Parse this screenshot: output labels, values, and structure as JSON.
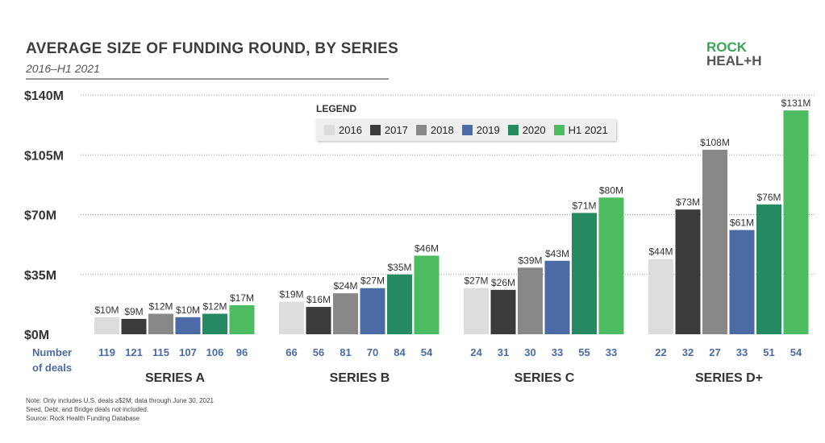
{
  "chart_data": {
    "type": "bar",
    "title": "AVERAGE SIZE OF FUNDING ROUND, BY SERIES",
    "subtitle": "2016–H1 2021",
    "ylim": [
      0,
      140
    ],
    "yticks": [
      0,
      35,
      70,
      105,
      140
    ],
    "ytick_labels": [
      "$0M",
      "$35M",
      "$70M",
      "$105M",
      "$140M"
    ],
    "categories": [
      "SERIES A",
      "SERIES B",
      "SERIES C",
      "SERIES D+"
    ],
    "deals_label": [
      "Number",
      "of deals"
    ],
    "legend_title": "LEGEND",
    "series": [
      {
        "name": "2016",
        "color": "#dcdcdc",
        "values": [
          10,
          19,
          27,
          44
        ],
        "labels": [
          "$10M",
          "$19M",
          "$27M",
          "$44M"
        ],
        "deals": [
          119,
          66,
          24,
          22
        ]
      },
      {
        "name": "2017",
        "color": "#3b3b3b",
        "values": [
          9,
          16,
          26,
          73
        ],
        "labels": [
          "$9M",
          "$16M",
          "$26M",
          "$73M"
        ],
        "deals": [
          121,
          56,
          31,
          32
        ]
      },
      {
        "name": "2018",
        "color": "#888888",
        "values": [
          12,
          24,
          39,
          108
        ],
        "labels": [
          "$12M",
          "$24M",
          "$39M",
          "$108M"
        ],
        "deals": [
          115,
          81,
          30,
          27
        ]
      },
      {
        "name": "2019",
        "color": "#4b6aa6",
        "values": [
          10,
          27,
          43,
          61
        ],
        "labels": [
          "$10M",
          "$27M",
          "$43M",
          "$61M"
        ],
        "deals": [
          107,
          70,
          33,
          33
        ]
      },
      {
        "name": "2020",
        "color": "#258a62",
        "values": [
          12,
          35,
          71,
          76
        ],
        "labels": [
          "$12M",
          "$35M",
          "$71M",
          "$76M"
        ],
        "deals": [
          106,
          84,
          55,
          51
        ]
      },
      {
        "name": "H1 2021",
        "color": "#4dbb5f",
        "values": [
          17,
          46,
          80,
          131
        ],
        "labels": [
          "$17M",
          "$46M",
          "$80M",
          "$131M"
        ],
        "deals": [
          96,
          54,
          33,
          54
        ]
      }
    ]
  },
  "logo": {
    "line1": "ROCK",
    "line2": "HEAL+H"
  },
  "notes": [
    "Note: Only includes U.S. deals ≥$2M; data through June 30, 2021",
    "Seed, Debt, and Bridge deals not included.",
    "Source: Rock Health Funding Database"
  ],
  "colors": {
    "deals_text": "#4b6aa6",
    "axis_text": "#333333"
  }
}
